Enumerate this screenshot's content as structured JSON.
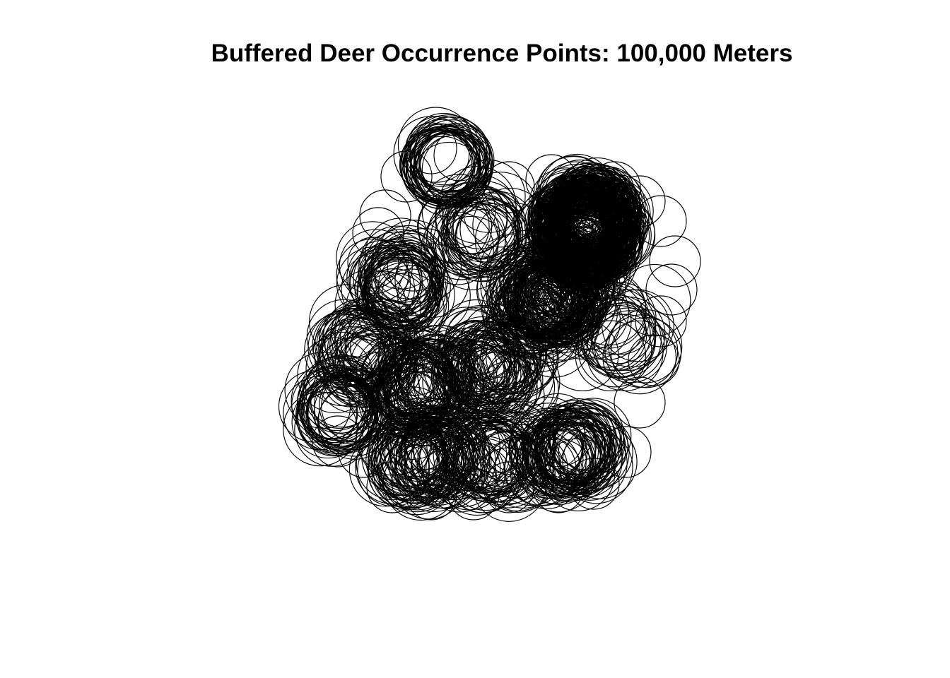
{
  "title": "Buffered Deer Occurrence Points: 100,000 Meters",
  "colors": {
    "background": "#ffffff",
    "stroke": "#000000"
  }
}
